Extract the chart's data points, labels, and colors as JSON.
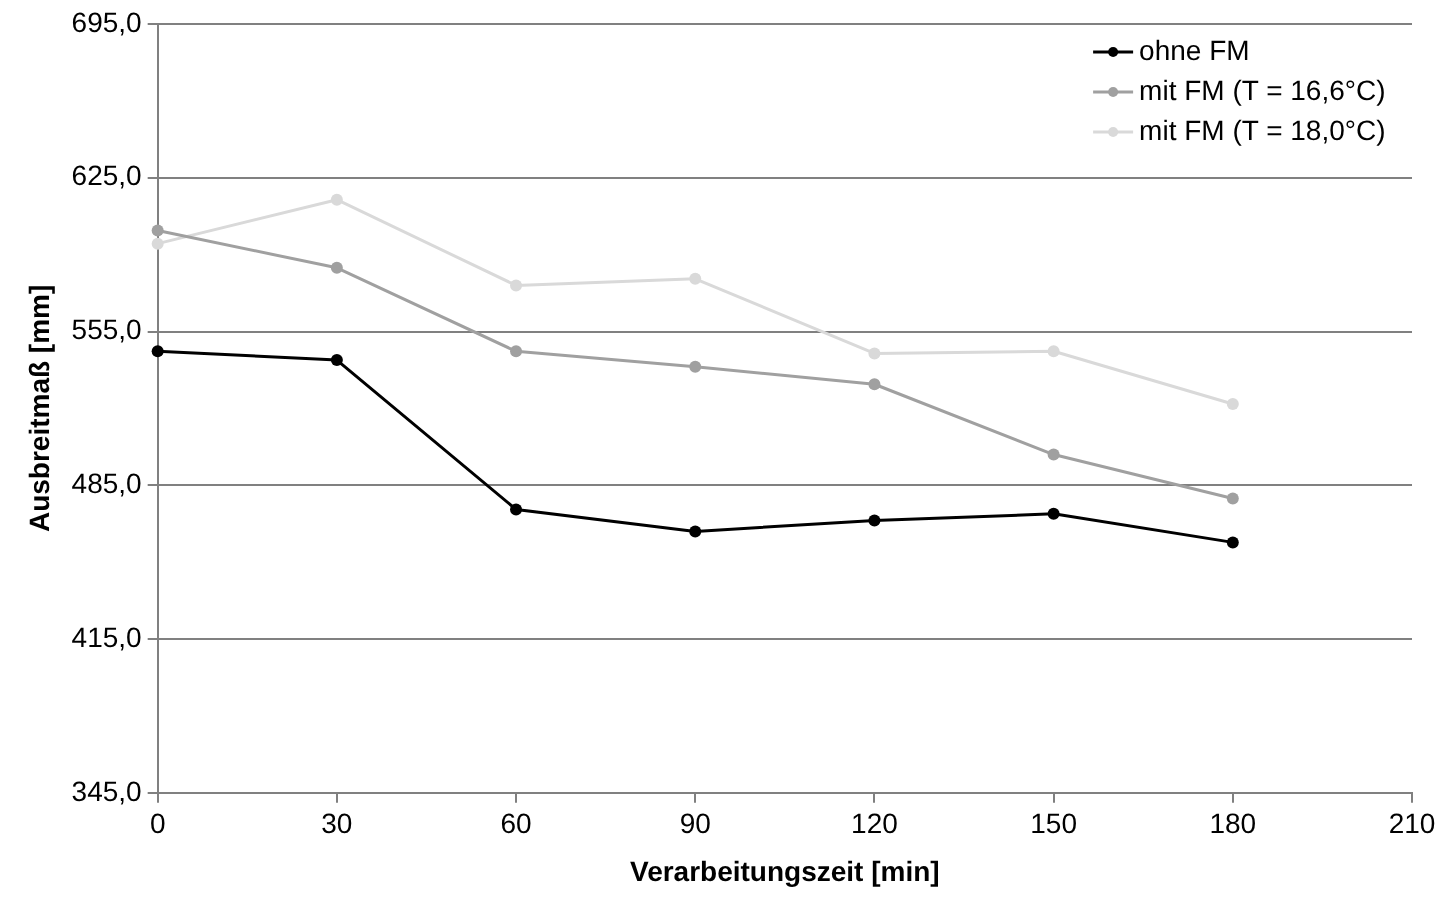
{
  "chart_data": {
    "type": "line",
    "xlabel": "Verarbeitungszeit [min]",
    "ylabel": "Ausbreitmaß [mm]",
    "x": [
      0,
      30,
      60,
      90,
      120,
      150,
      180
    ],
    "series": [
      {
        "name": "ohne FM",
        "color": "#000000",
        "values": [
          546,
          542,
          474,
          464,
          469,
          472,
          459
        ]
      },
      {
        "name": "mit FM (T = 16,6°C)",
        "color": "#a0a0a0",
        "values": [
          601,
          584,
          546,
          539,
          531,
          499,
          479
        ]
      },
      {
        "name": "mit FM (T = 18,0°C)",
        "color": "#d9d9d9",
        "values": [
          595,
          615,
          576,
          579,
          545,
          546,
          522
        ]
      }
    ],
    "xlim": [
      0,
      210
    ],
    "xticks": [
      0,
      30,
      60,
      90,
      120,
      150,
      180,
      210
    ],
    "ylim": [
      345,
      695
    ],
    "yticks": [
      {
        "value": 345,
        "label": "345,0"
      },
      {
        "value": 415,
        "label": "415,0"
      },
      {
        "value": 485,
        "label": "485,0"
      },
      {
        "value": 555,
        "label": "555,0"
      },
      {
        "value": 625,
        "label": "625,0"
      },
      {
        "value": 695,
        "label": "695,0"
      }
    ],
    "grid": "y",
    "legend": "top right",
    "marker": "circle",
    "line_style": "solid"
  }
}
